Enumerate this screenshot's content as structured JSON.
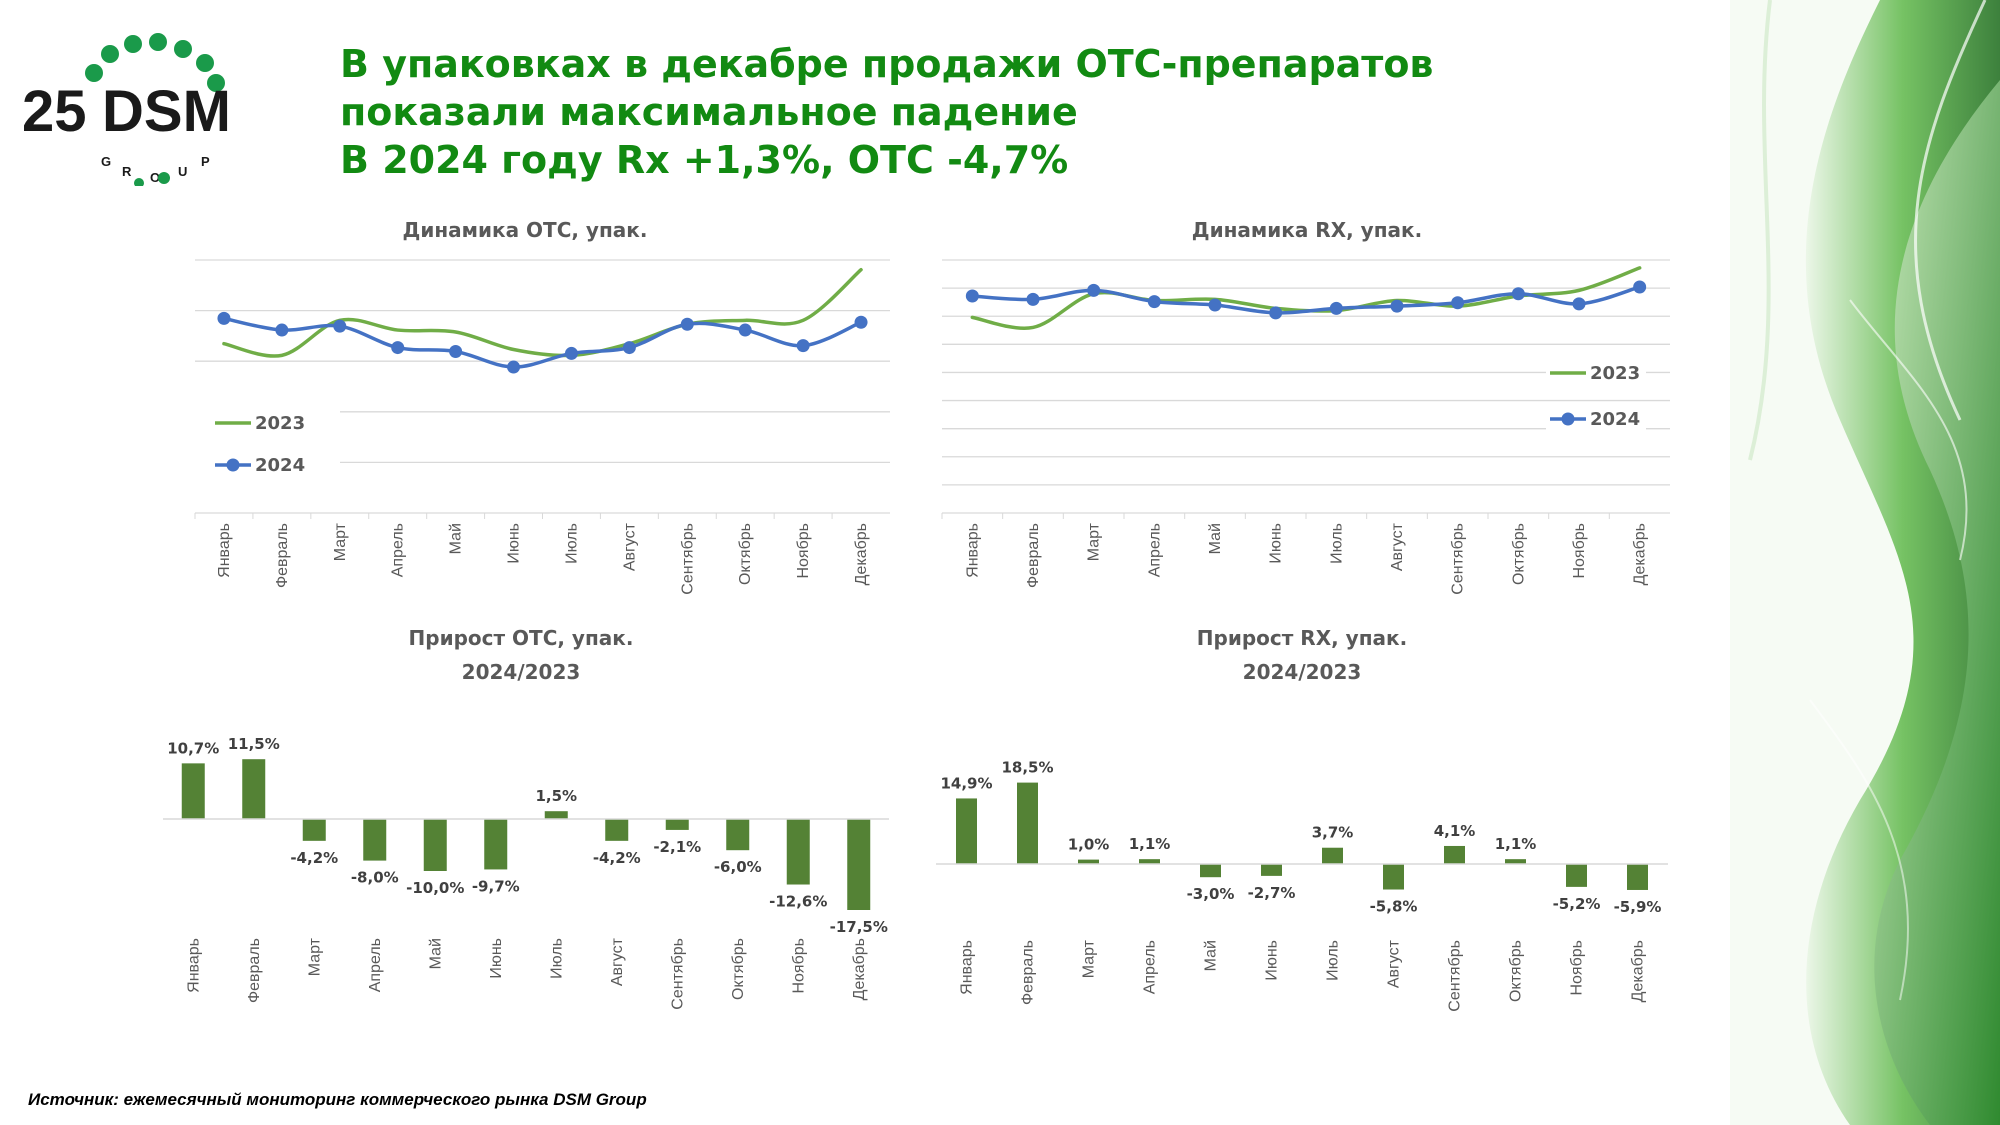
{
  "logo": {
    "number": "25",
    "brand": "DSM",
    "group_letters": [
      "G",
      "R",
      "O",
      "U",
      "P"
    ]
  },
  "title": {
    "line1": "В упаковках в декабре продажи ОТС-препаратов",
    "line2": "показали максимальное падение",
    "line3": "В 2024 году Rx +1,3%, OTC -4,7%"
  },
  "colors": {
    "green_series": "#70ad47",
    "blue_series": "#4472c4",
    "bar": "#548235",
    "title": "#128a12",
    "grid": "#d9d9d9"
  },
  "chart_data": [
    {
      "id": "otc_line",
      "type": "line",
      "title": "Динамика ОТС, упак.",
      "categories": [
        "Январь",
        "Февраль",
        "Март",
        "Апрель",
        "Май",
        "Июнь",
        "Июль",
        "Август",
        "Сентябрь",
        "Октябрь",
        "Ноябрь",
        "Декабрь"
      ],
      "series": [
        {
          "name": "2023",
          "marker": false,
          "values": [
            87,
            81,
            99,
            94,
            93,
            84,
            81,
            87,
            97,
            99,
            99,
            125
          ]
        },
        {
          "name": "2024",
          "marker": true,
          "values": [
            100,
            94,
            96,
            85,
            83,
            75,
            82,
            85,
            97,
            94,
            86,
            98
          ]
        }
      ],
      "ylim": [
        0,
        130
      ],
      "gridlines": [
        26,
        52,
        78,
        104,
        130
      ],
      "legend": "bottom-left",
      "ylabels_visible": false
    },
    {
      "id": "rx_line",
      "type": "line",
      "title": "Динамика RX, упак.",
      "categories": [
        "Январь",
        "Февраль",
        "Март",
        "Апрель",
        "Май",
        "Июнь",
        "Июль",
        "Август",
        "Сентябрь",
        "Октябрь",
        "Ноябрь",
        "Декабрь"
      ],
      "series": [
        {
          "name": "2023",
          "marker": false,
          "values": [
            174,
            165,
            195,
            189,
            190,
            182,
            180,
            189,
            184,
            193,
            198,
            218
          ]
        },
        {
          "name": "2024",
          "marker": true,
          "values": [
            193,
            190,
            198,
            188,
            185,
            178,
            182,
            184,
            187,
            195,
            186,
            201
          ]
        }
      ],
      "ylim": [
        0,
        225
      ],
      "gridlines": [
        25,
        50,
        75,
        100,
        125,
        150,
        175,
        200,
        225
      ],
      "legend": "right",
      "ylabels_visible": false
    },
    {
      "id": "otc_growth",
      "type": "bar",
      "title": "Прирост ОТС, упак.",
      "subtitle": "2024/2023",
      "categories": [
        "Январь",
        "Февраль",
        "Март",
        "Апрель",
        "Май",
        "Июнь",
        "Июль",
        "Август",
        "Сентябрь",
        "Октябрь",
        "Ноябрь",
        "Декабрь"
      ],
      "values": [
        10.7,
        11.5,
        -4.2,
        -8.0,
        -10.0,
        -9.7,
        1.5,
        -4.2,
        -2.1,
        -6.0,
        -12.6,
        -17.5
      ],
      "labels": [
        "10,7%",
        "11,5%",
        "-4,2%",
        "-8,0%",
        "-10,0%",
        "-9,7%",
        "1,5%",
        "-4,2%",
        "-2,1%",
        "-6,0%",
        "-12,6%",
        "-17,5%"
      ],
      "unit": "%",
      "ylim": [
        -18,
        12
      ]
    },
    {
      "id": "rx_growth",
      "type": "bar",
      "title": "Прирост RX, упак.",
      "subtitle": "2024/2023",
      "categories": [
        "Январь",
        "Февраль",
        "Март",
        "Апрель",
        "Май",
        "Июнь",
        "Июль",
        "Август",
        "Сентябрь",
        "Октябрь",
        "Ноябрь",
        "Декабрь"
      ],
      "values": [
        14.9,
        18.5,
        1.0,
        1.1,
        -3.0,
        -2.7,
        3.7,
        -5.8,
        4.1,
        1.1,
        -5.2,
        -5.9
      ],
      "labels": [
        "14,9%",
        "18,5%",
        "1,0%",
        "1,1%",
        "-3,0%",
        "-2,7%",
        "3,7%",
        "-5,8%",
        "4,1%",
        "1,1%",
        "-5,2%",
        "-5,9%"
      ],
      "unit": "%",
      "ylim": [
        -7,
        19
      ]
    }
  ],
  "source": "Источник: ежемесячный мониторинг коммерческого рынка DSM Group"
}
